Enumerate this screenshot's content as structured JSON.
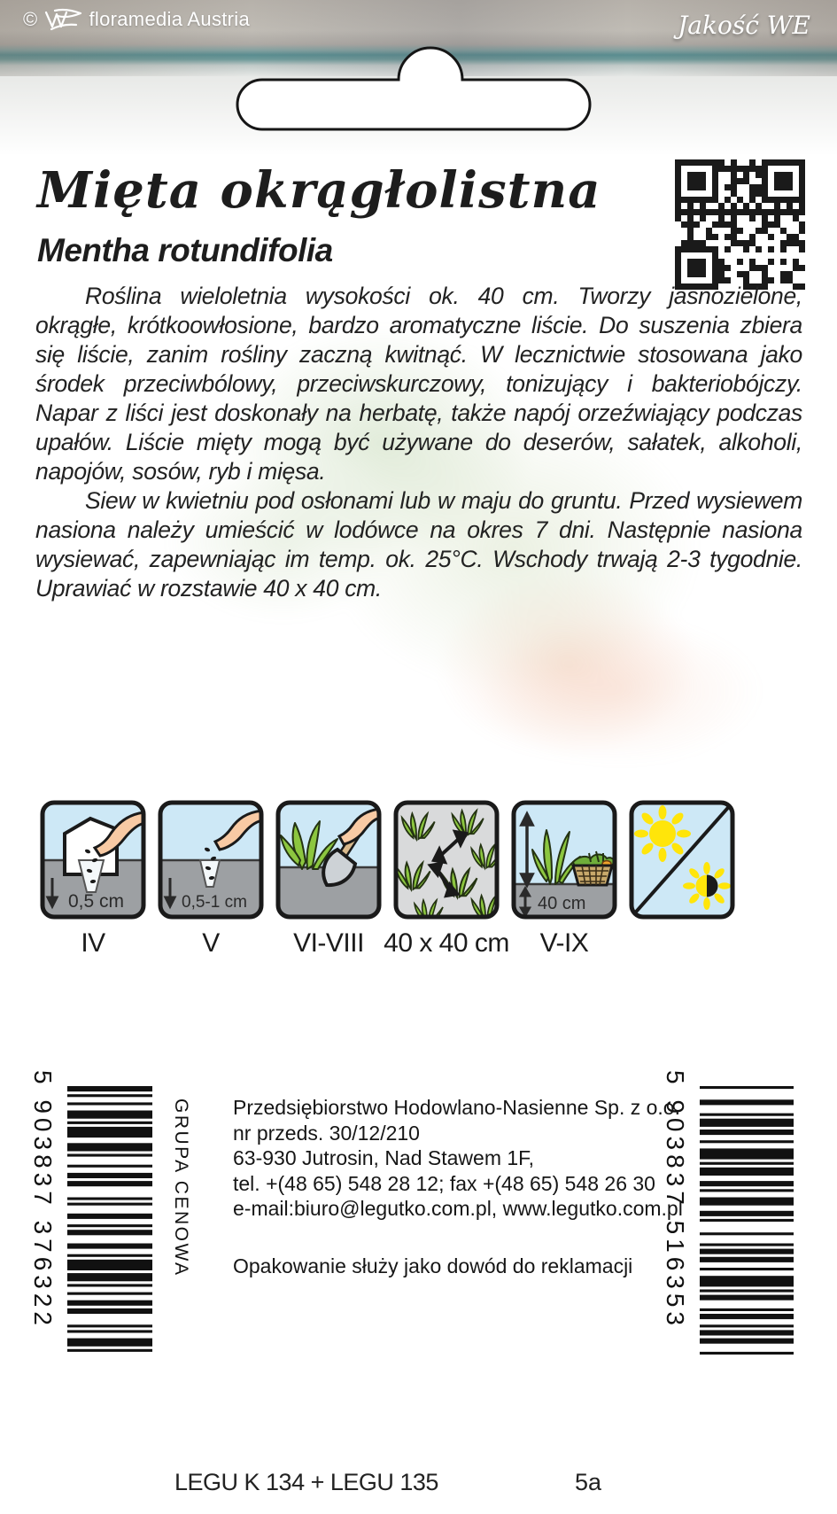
{
  "header": {
    "copyright": "©",
    "credit": "floramedia Austria",
    "quality_label": "Jakość WE"
  },
  "title": "Mięta okrągłolistna",
  "latin_name": "Mentha rotundifolia",
  "description_paragraphs": [
    "Roślina wieloletnia wysokości ok. 40 cm. Tworzy jasnozielone, okrągłe, krótkoowłosione, bardzo aromatyczne liście. Do suszenia zbiera się liście, zanim rośliny zaczną kwitnąć. W lecznictwie stosowana jako środek przeciwbólowy, przeciwskurczowy, tonizujący i bakteriobójczy. Napar z liści jest doskonały na herbatę, także napój orzeźwiający podczas upałów. Liście mięty mogą być używane do deserów, sałatek, alkoholi, napojów, sosów, ryb i mięsa.",
    "Siew w kwietniu pod osłonami lub w maju do gruntu. Przed wysiewem nasiona należy umieścić w lodówce na okres 7 dni. Następnie nasiona wysiewać, zapewniając im temp. ok. 25°C. Wschody trwają 2-3 tygodnie. Uprawiać w rozstawie 40 x 40 cm."
  ],
  "pictograms": [
    {
      "icon": "sowing-under-cover-icon",
      "depth": "0,5 cm",
      "label": "IV"
    },
    {
      "icon": "sowing-direct-icon",
      "depth": "0,5-1 cm",
      "label": "V"
    },
    {
      "icon": "transplanting-icon",
      "depth": "",
      "label": "VI-VIII"
    },
    {
      "icon": "plant-spacing-icon",
      "depth": "",
      "label": "40 x 40 cm"
    },
    {
      "icon": "plant-height-icon",
      "depth": "40 cm",
      "label": "V-IX"
    },
    {
      "icon": "sun-partial-shade-icon",
      "depth": "",
      "label": ""
    }
  ],
  "barcodes": {
    "left": {
      "digits": "5 903837 376322",
      "side_label": "GRUPA CENOWA"
    },
    "right": {
      "digits": "5 903837 516353"
    }
  },
  "company": {
    "lines": [
      "Przedsiębiorstwo Hodowlano-Nasienne Sp. z o.o.",
      "nr przeds. 30/12/210",
      "63-930 Jutrosin, Nad Stawem 1F,",
      "tel. +(48 65) 548 28 12; fax +(48 65) 548 26 30",
      "e-mail:biuro@legutko.com.pl, www.legutko.com.pl"
    ],
    "note": "Opakowanie służy jako dowód do reklamacji"
  },
  "footer": {
    "batch_code": "LEGU K 134 + LEGU 135",
    "page_code": "5a"
  },
  "colors": {
    "sky": "#cde8f6",
    "soil": "#9da0a3",
    "leaf": "#8cc63f",
    "sun": "#ffe50a",
    "teal_band": "#5a8d90",
    "text": "#1b1b1b"
  }
}
